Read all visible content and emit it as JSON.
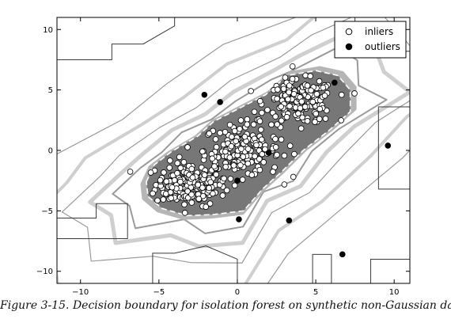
{
  "caption": "Figure 3-15. Decision boundary for isolation forest on synthetic non-Gaussian data",
  "colors": {
    "region_fill": "#777777",
    "contour_dark": "#3a3a3a",
    "contour_mid": "#9a9a9a",
    "contour_light": "#cfcfcf",
    "inlier_face": "#ffffff",
    "outlier_face": "#000000"
  },
  "chart_data": {
    "type": "scatter",
    "title": "",
    "xlabel": "",
    "ylabel": "",
    "xlim": [
      -11.5,
      11
    ],
    "ylim": [
      -11,
      11
    ],
    "xticks": [
      -10,
      -5,
      0,
      5,
      10
    ],
    "yticks": [
      -10,
      -5,
      0,
      5,
      10
    ],
    "xtick_labels": [
      "−10",
      "−5",
      "0",
      "5",
      "10"
    ],
    "ytick_labels": [
      "−10",
      "−5",
      "0",
      "5",
      "10"
    ],
    "grid": false,
    "legend_position": "top-right",
    "legend": [
      {
        "label": "inliers",
        "marker": "open-circle"
      },
      {
        "label": "outliers",
        "marker": "filled-circle"
      }
    ],
    "inlier_clusters": [
      {
        "center": [
          -3,
          -2.8
        ],
        "spread": [
          1.1,
          0.9
        ],
        "approx_count": 180
      },
      {
        "center": [
          0.3,
          0
        ],
        "spread": [
          1.2,
          1.1
        ],
        "approx_count": 180
      },
      {
        "center": [
          4,
          4
        ],
        "spread": [
          1.1,
          0.9
        ],
        "approx_count": 180
      }
    ],
    "decision_region_outline": [
      [
        -5.8,
        -2.6
      ],
      [
        -5.3,
        -1.2
      ],
      [
        -4.2,
        -0.1
      ],
      [
        -2.5,
        1.2
      ],
      [
        -1.5,
        2.4
      ],
      [
        0,
        3.4
      ],
      [
        1.8,
        4.6
      ],
      [
        3.2,
        6.2
      ],
      [
        5,
        6.6
      ],
      [
        6.4,
        6.2
      ],
      [
        7.2,
        5
      ],
      [
        7.2,
        3.2
      ],
      [
        5.8,
        1.6
      ],
      [
        4.2,
        0
      ],
      [
        2.8,
        -1.8
      ],
      [
        1.6,
        -3.2
      ],
      [
        0.4,
        -5
      ],
      [
        -1.5,
        -5.3
      ],
      [
        -3.2,
        -5.4
      ],
      [
        -4.8,
        -4.8
      ],
      [
        -5.7,
        -3.8
      ]
    ],
    "outliers": [
      {
        "x": -2.1,
        "y": 4.6
      },
      {
        "x": -1.1,
        "y": 4.0
      },
      {
        "x": 6.2,
        "y": 5.6
      },
      {
        "x": 9.6,
        "y": 0.4
      },
      {
        "x": 2.0,
        "y": -0.2
      },
      {
        "x": 0.0,
        "y": -2.5
      },
      {
        "x": 0.1,
        "y": -5.7
      },
      {
        "x": 3.3,
        "y": -5.8
      },
      {
        "x": 6.7,
        "y": -8.6
      }
    ]
  }
}
